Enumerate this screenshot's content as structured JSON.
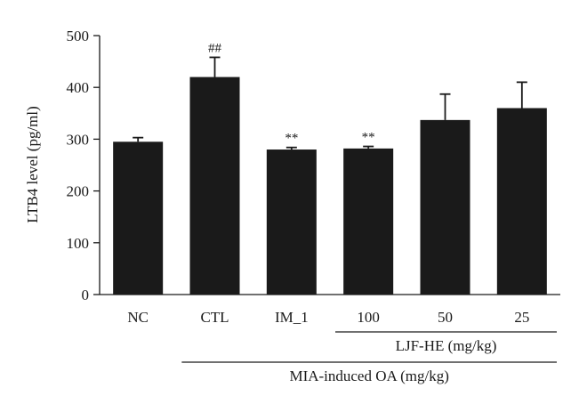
{
  "chart_data": {
    "type": "bar",
    "ylabel": "LTB4 level (pg/ml)",
    "ylim": [
      0,
      500
    ],
    "yticks": [
      0,
      100,
      200,
      300,
      400,
      500
    ],
    "grid": false,
    "categories": [
      "NC",
      "CTL",
      "IM_1",
      "100",
      "50",
      "25"
    ],
    "values": [
      295,
      420,
      280,
      282,
      337,
      360
    ],
    "errors": [
      8,
      38,
      4,
      4,
      50,
      50
    ],
    "significance": [
      "",
      "##",
      "**",
      "**",
      "",
      ""
    ],
    "bar_color": "#1a1a1a",
    "groups": [
      {
        "label": "LJF-HE (mg/kg)",
        "from": 3,
        "to": 5
      },
      {
        "label": "MIA-induced OA (mg/kg)",
        "from": 1,
        "to": 5
      }
    ]
  }
}
